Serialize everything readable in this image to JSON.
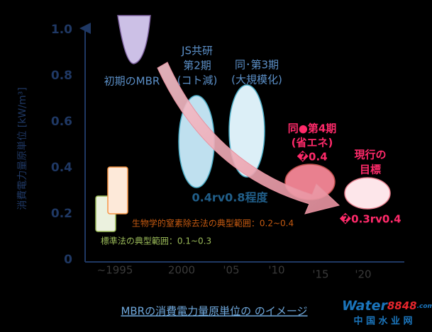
{
  "y_axis": {
    "label": "消費電力量原単位 [kW/m³]",
    "ticks": [
      "1.0",
      "0.8",
      "0.6",
      "0.4",
      "0.2",
      "0"
    ]
  },
  "x_axis": {
    "ticks": [
      "~1995",
      "2000",
      "'05",
      "'10",
      "'15",
      "'20"
    ]
  },
  "labels": {
    "initial": "初期のMBR",
    "phase2": [
      "JS共研",
      "第2期",
      "(コト減)"
    ],
    "phase3": [
      "同･第3期",
      "(大規模化)"
    ],
    "range": "0.4rv0.8程度",
    "phase4": [
      "同●第4期",
      "(省エネ)",
      "�0.4"
    ],
    "target": [
      "現行の",
      "目標"
    ],
    "target_value": "�0.3rv0.4",
    "nitrogen": "生物学的窒素除去法の典型範囲：0.2~0.4",
    "standard": "標準法の典型範囲：0.1~0.3"
  },
  "caption": "MBRの消費電力量原単位の のイメージ",
  "logo": {
    "brand": "Water",
    "number": "8848",
    "domain": ".com",
    "subtitle": "中 国 水 业 网"
  }
}
